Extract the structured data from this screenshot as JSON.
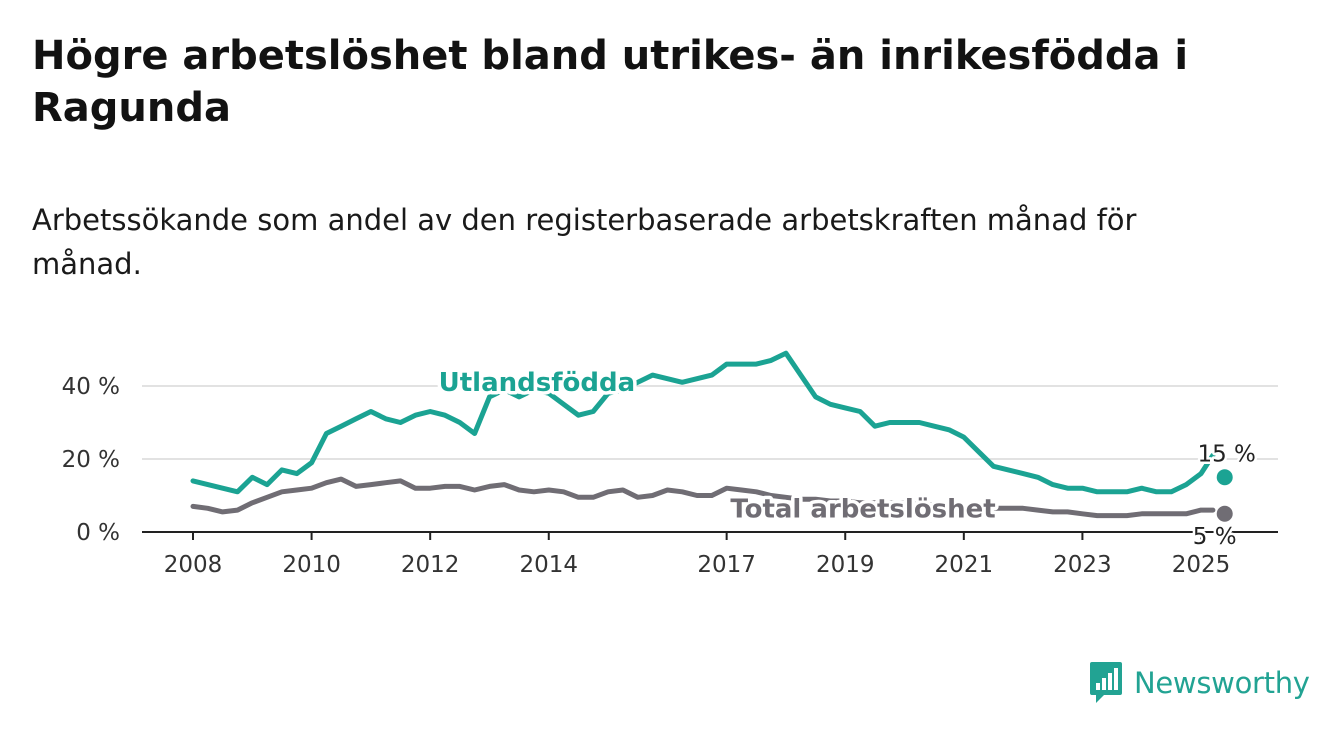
{
  "title": "Högre arbetslöshet bland utrikes- än inrikesfödda i Ragunda",
  "subtitle": "Arbetssökande som andel av den registerbaserade arbetskraften månad för månad.",
  "brand": {
    "name": "Newsworthy",
    "color": "#22a393",
    "icon": "newsworthy-logo-icon"
  },
  "chart_data": {
    "type": "line",
    "title": "Högre arbetslöshet bland utrikes- än inrikesfödda i Ragunda",
    "subtitle": "Arbetssökande som andel av den registerbaserade arbetskraften månad för månad.",
    "xlabel": "",
    "ylabel": "",
    "xlim": [
      2008,
      2025.5
    ],
    "ylim": [
      0,
      50
    ],
    "x_ticks": [
      2008,
      2010,
      2012,
      2014,
      2017,
      2019,
      2021,
      2023,
      2025
    ],
    "x_tick_labels": [
      "2008",
      "2010",
      "2012",
      "2014",
      "2017",
      "2019",
      "2021",
      "2023",
      "2025"
    ],
    "y_ticks": [
      0,
      20,
      40
    ],
    "y_tick_labels": [
      "0 %",
      "20 %",
      "40 %"
    ],
    "grid": true,
    "legend": "inline labels",
    "series": [
      {
        "name": "Utlandsfödda",
        "color": "#1ba393",
        "end_label": "15 %",
        "x": [
          2008.0,
          2008.25,
          2008.5,
          2008.75,
          2009.0,
          2009.25,
          2009.5,
          2009.75,
          2010.0,
          2010.25,
          2010.5,
          2010.75,
          2011.0,
          2011.25,
          2011.5,
          2011.75,
          2012.0,
          2012.25,
          2012.5,
          2012.75,
          2013.0,
          2013.25,
          2013.5,
          2013.75,
          2014.0,
          2014.25,
          2014.5,
          2014.75,
          2015.0,
          2015.25,
          2015.5,
          2015.75,
          2016.0,
          2016.25,
          2016.5,
          2016.75,
          2017.0,
          2017.25,
          2017.5,
          2017.75,
          2018.0,
          2018.25,
          2018.5,
          2018.75,
          2019.0,
          2019.25,
          2019.5,
          2019.75,
          2020.0,
          2020.25,
          2020.5,
          2020.75,
          2021.0,
          2021.25,
          2021.5,
          2021.75,
          2022.0,
          2022.25,
          2022.5,
          2022.75,
          2023.0,
          2023.25,
          2023.5,
          2023.75,
          2024.0,
          2024.25,
          2024.5,
          2024.75,
          2025.0,
          2025.2,
          2025.4
        ],
        "values": [
          14,
          13,
          12,
          11,
          15,
          13,
          17,
          16,
          19,
          27,
          29,
          31,
          33,
          31,
          30,
          32,
          33,
          32,
          30,
          27,
          37,
          39,
          37,
          39,
          38,
          35,
          32,
          33,
          38,
          39,
          41,
          43,
          42,
          41,
          42,
          43,
          46,
          46,
          46,
          47,
          49,
          43,
          37,
          35,
          34,
          33,
          29,
          30,
          30,
          30,
          29,
          28,
          26,
          22,
          18,
          17,
          16,
          15,
          13,
          12,
          12,
          11,
          11,
          11,
          12,
          11,
          11,
          13,
          16,
          21,
          15
        ]
      },
      {
        "name": "Total arbetslöshet",
        "color": "#706d74",
        "end_label": "5 %",
        "x": [
          2008.0,
          2008.25,
          2008.5,
          2008.75,
          2009.0,
          2009.25,
          2009.5,
          2009.75,
          2010.0,
          2010.25,
          2010.5,
          2010.75,
          2011.0,
          2011.25,
          2011.5,
          2011.75,
          2012.0,
          2012.25,
          2012.5,
          2012.75,
          2013.0,
          2013.25,
          2013.5,
          2013.75,
          2014.0,
          2014.25,
          2014.5,
          2014.75,
          2015.0,
          2015.25,
          2015.5,
          2015.75,
          2016.0,
          2016.25,
          2016.5,
          2016.75,
          2017.0,
          2017.25,
          2017.5,
          2017.75,
          2018.0,
          2018.25,
          2018.5,
          2018.75,
          2019.0,
          2019.25,
          2019.5,
          2019.75,
          2020.0,
          2020.25,
          2020.5,
          2020.75,
          2021.0,
          2021.25,
          2021.5,
          2021.75,
          2022.0,
          2022.25,
          2022.5,
          2022.75,
          2023.0,
          2023.25,
          2023.5,
          2023.75,
          2024.0,
          2024.25,
          2024.5,
          2024.75,
          2025.0,
          2025.2,
          2025.4
        ],
        "values": [
          7,
          6.5,
          5.5,
          6,
          8,
          9.5,
          11,
          11.5,
          12,
          13.5,
          14.5,
          12.5,
          13,
          13.5,
          14,
          12,
          12,
          12.5,
          12.5,
          11.5,
          12.5,
          13,
          11.5,
          11,
          11.5,
          11,
          9.5,
          9.5,
          11,
          11.5,
          9.5,
          10,
          11.5,
          11,
          10,
          10,
          12,
          11.5,
          11,
          10,
          9.5,
          9,
          9,
          8.5,
          8.5,
          8,
          8,
          8,
          8,
          7.5,
          7.5,
          7,
          7,
          7,
          6.5,
          6.5,
          6.5,
          6,
          5.5,
          5.5,
          5,
          4.5,
          4.5,
          4.5,
          5,
          5,
          5,
          5,
          6,
          6,
          5
        ]
      }
    ]
  }
}
